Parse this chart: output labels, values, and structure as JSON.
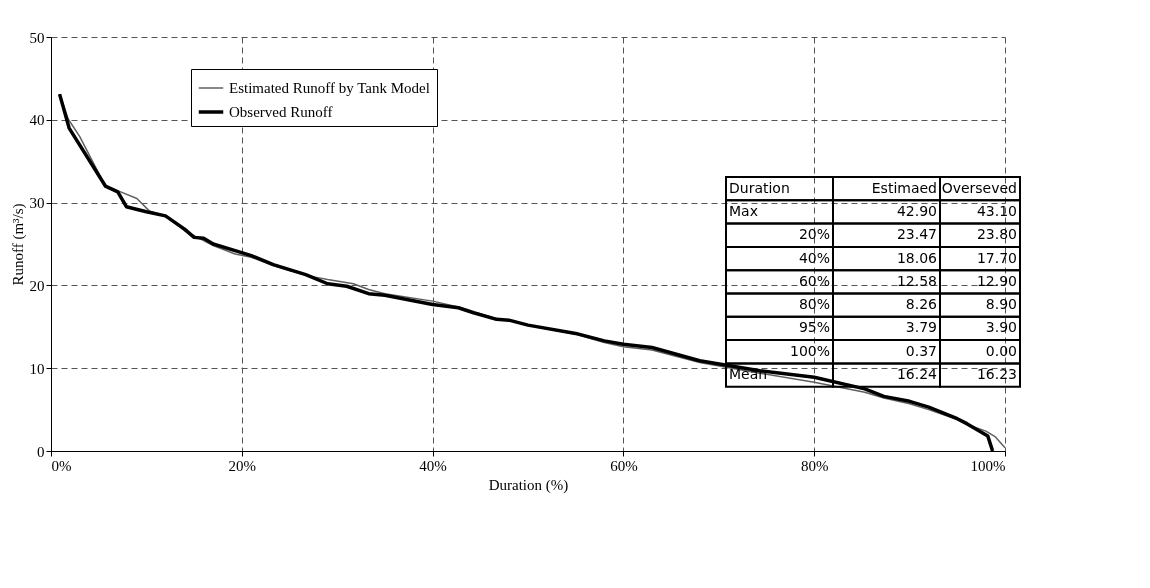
{
  "chart_data": {
    "type": "line",
    "xlabel": "Duration (%)",
    "ylabel": "Runoff (m³/s)",
    "xlim": [
      0,
      100
    ],
    "ylim": [
      0,
      50
    ],
    "xticks": [
      {
        "value": 0,
        "label": "0%"
      },
      {
        "value": 20,
        "label": "20%"
      },
      {
        "value": 40,
        "label": "40%"
      },
      {
        "value": 60,
        "label": "60%"
      },
      {
        "value": 80,
        "label": "80%"
      },
      {
        "value": 100,
        "label": "100%"
      }
    ],
    "yticks": [
      0,
      10,
      20,
      30,
      40,
      50
    ],
    "grid": true,
    "legend": "top left",
    "line_style": "solid",
    "marker": "none",
    "series": [
      {
        "name": "Estimated Runoff by Tank Model",
        "color": "#606060",
        "x": [
          0.9,
          1.8,
          3,
          5.7,
          7.3,
          9,
          10.3,
          12,
          14,
          16,
          17,
          19.3,
          21,
          23.3,
          25,
          27.7,
          29,
          31.7,
          33.3,
          35,
          40,
          42.7,
          44.3,
          46.7,
          48,
          50,
          55,
          58,
          60,
          63,
          68,
          74.3,
          80,
          85.3,
          87.3,
          90,
          92,
          95,
          96,
          98,
          99,
          100
        ],
        "values": [
          43.1,
          40.1,
          38.0,
          32.0,
          31.3,
          30.5,
          29.0,
          28.4,
          26.6,
          25.4,
          24.8,
          23.8,
          23.4,
          22.4,
          21.8,
          21.0,
          20.7,
          20.2,
          19.5,
          19.0,
          18.1,
          17.4,
          16.8,
          16.0,
          15.8,
          15.2,
          14.1,
          13.1,
          12.6,
          12.2,
          10.7,
          9.4,
          8.3,
          7.1,
          6.4,
          5.7,
          5.0,
          3.8,
          3.2,
          2.4,
          1.7,
          0.4
        ]
      },
      {
        "name": "Observed Runoff",
        "color": "#000000",
        "x": [
          0.9,
          1.9,
          5.7,
          7,
          7.9,
          10,
          12,
          14,
          15,
          16,
          17,
          19.3,
          21,
          23.3,
          25,
          26.7,
          29,
          31,
          33.3,
          35,
          40,
          42.7,
          44.3,
          46.7,
          48,
          50,
          55,
          58,
          60,
          63,
          68,
          74.3,
          80,
          85.3,
          87.3,
          90,
          92,
          95,
          96,
          98.2,
          98.7
        ],
        "values": [
          43.1,
          39.0,
          32.0,
          31.3,
          29.5,
          28.9,
          28.4,
          26.8,
          25.8,
          25.7,
          25.0,
          24.2,
          23.6,
          22.5,
          21.9,
          21.3,
          20.2,
          19.9,
          19.0,
          18.8,
          17.7,
          17.3,
          16.7,
          15.9,
          15.8,
          15.2,
          14.2,
          13.3,
          12.9,
          12.5,
          10.9,
          9.7,
          8.9,
          7.5,
          6.6,
          6.0,
          5.3,
          3.9,
          3.3,
          1.8,
          0.0
        ]
      }
    ],
    "annotations": [
      "Duration",
      "Estimaed",
      "Overseved",
      "Max",
      "42.90",
      "43.10",
      "20%",
      "23.47",
      "23.80",
      "40%",
      "18.06",
      "17.70",
      "60%",
      "12.58",
      "12.90",
      "80%",
      "8.26",
      "8.90",
      "95%",
      "3.79",
      "3.90",
      "100%",
      "0.37",
      "0.00",
      "Mean",
      "16.24",
      "16.23"
    ]
  }
}
